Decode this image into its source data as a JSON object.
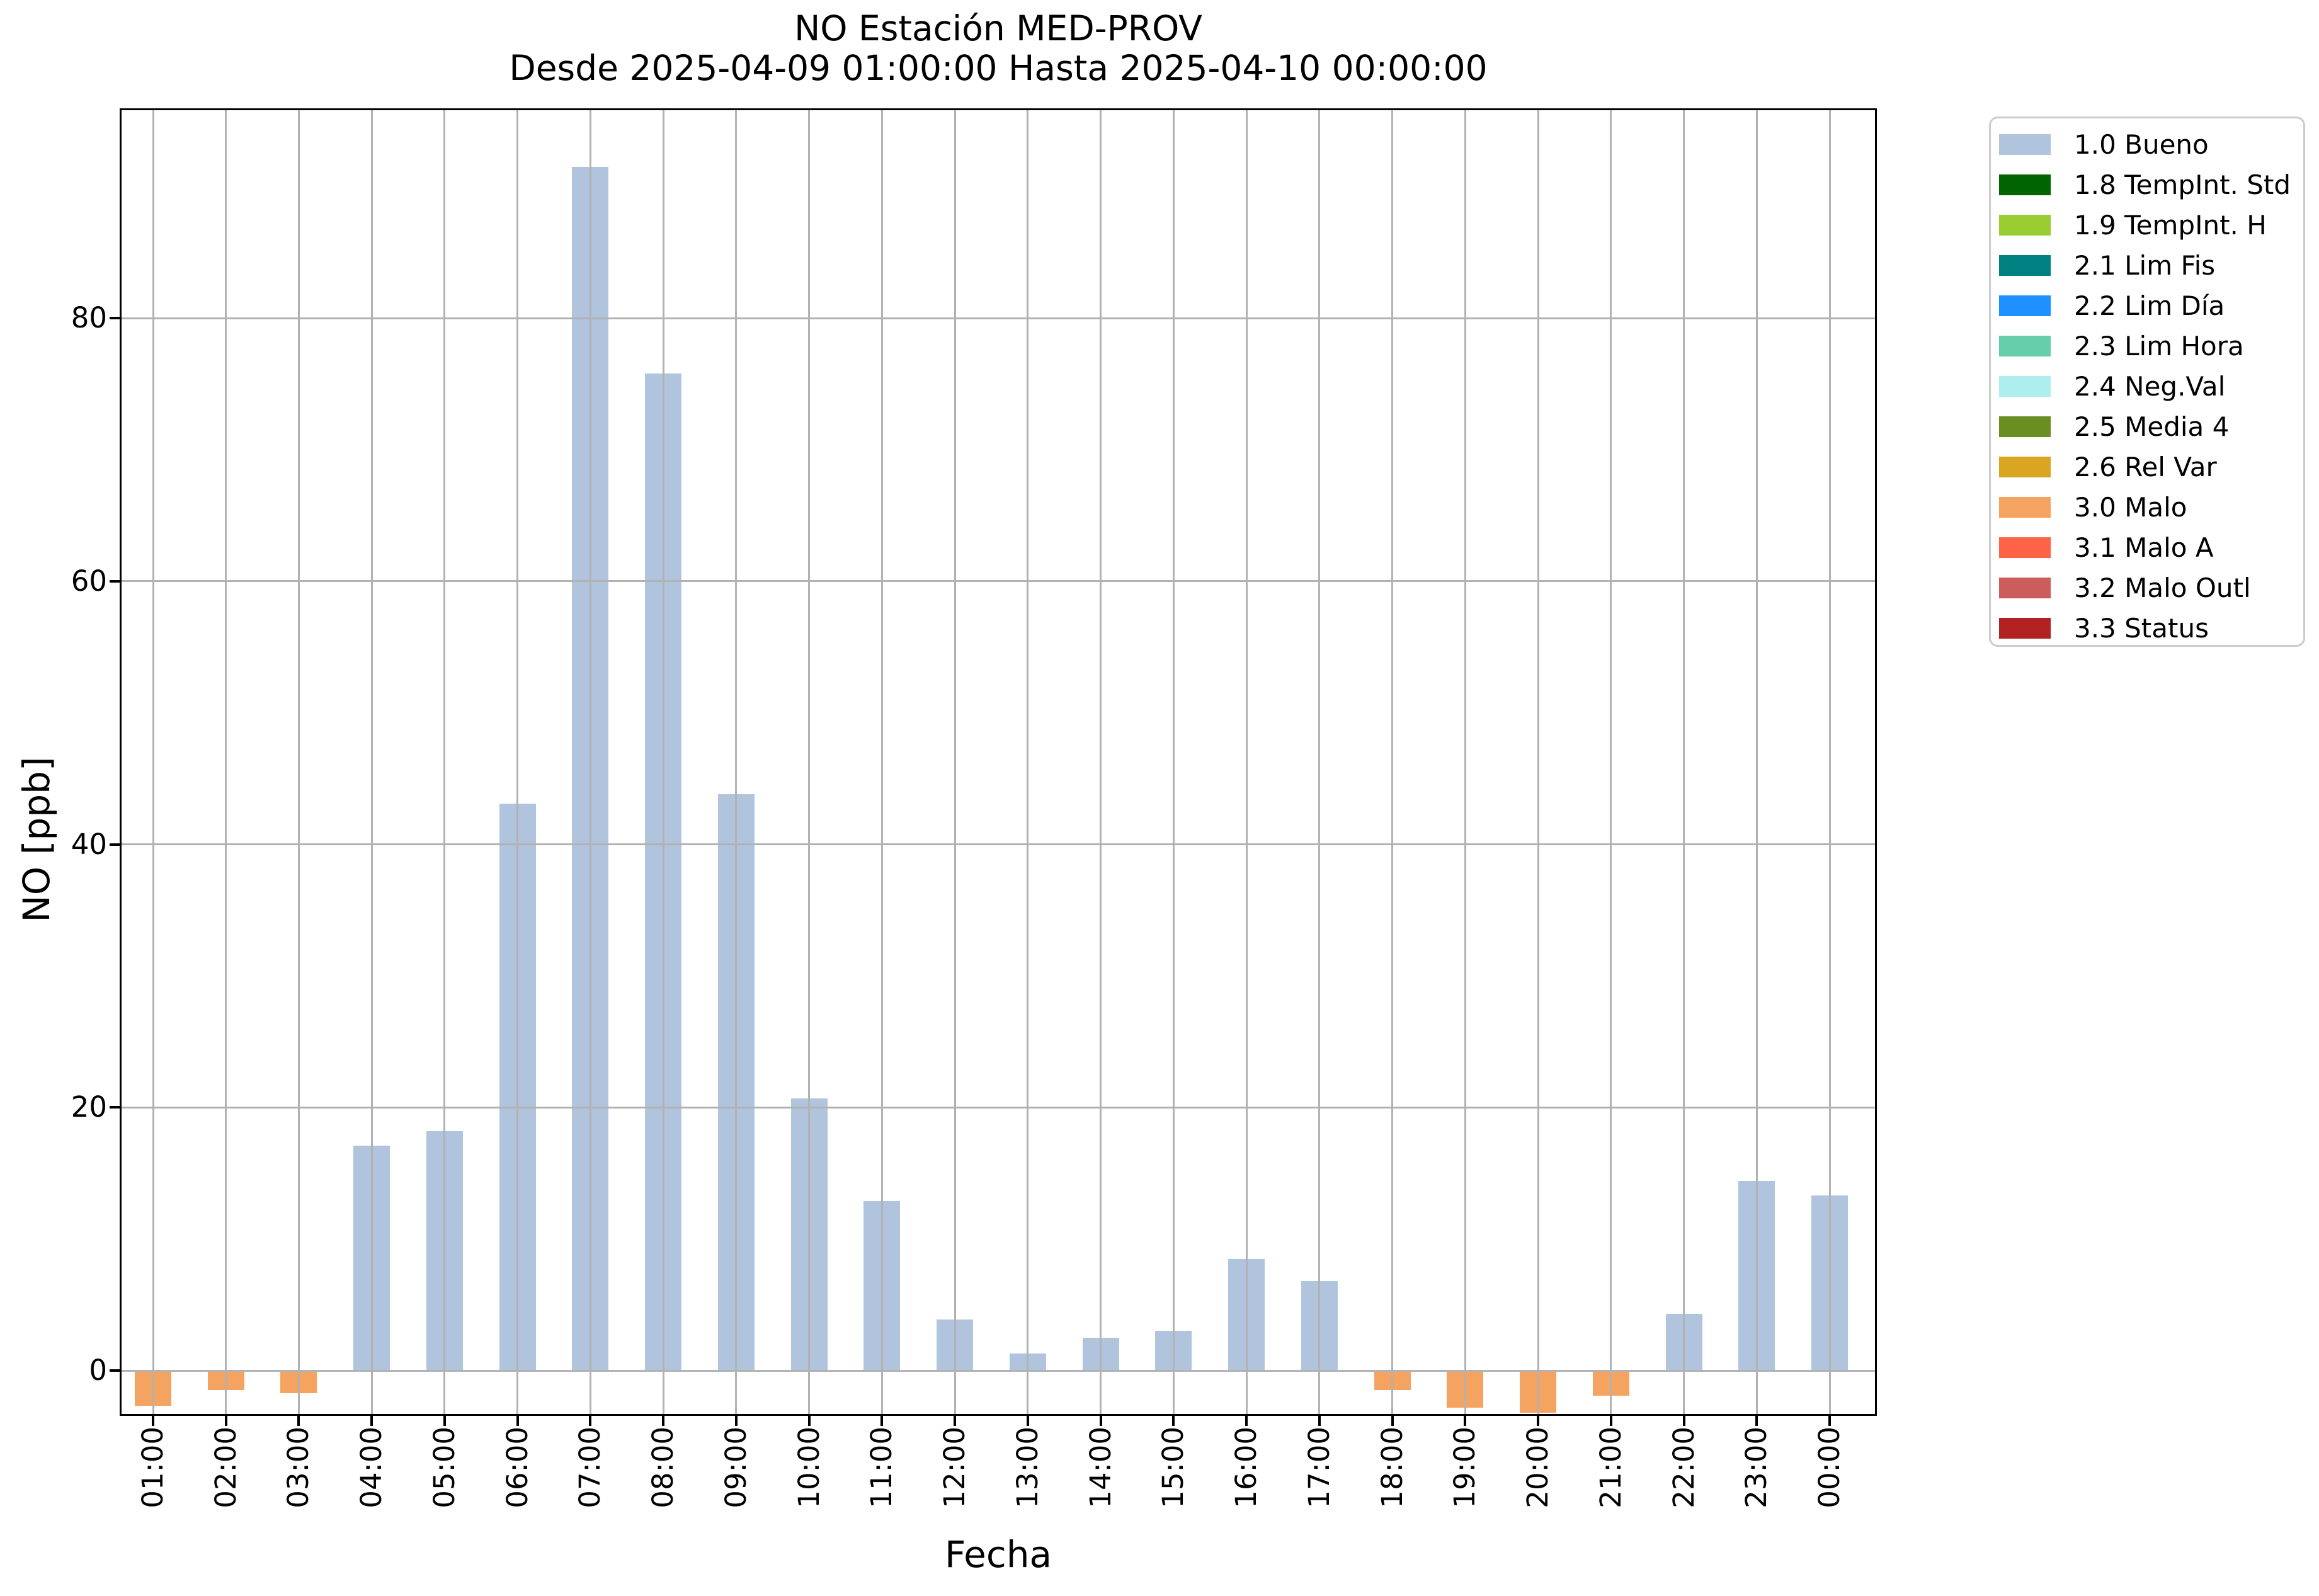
{
  "figure": {
    "title_line1": "NO Estación MED-PROV",
    "title_line2": "Desde 2025-04-09 01:00:00 Hasta 2025-04-10 00:00:00",
    "xlabel": "Fecha",
    "ylabel": "NO [ppb]"
  },
  "chart_data": {
    "type": "bar",
    "title": "NO Estación MED-PROV",
    "subtitle": "Desde 2025-04-09 01:00:00 Hasta 2025-04-10 00:00:00",
    "xlabel": "Fecha",
    "ylabel": "NO [ppb]",
    "categories": [
      "01:00",
      "02:00",
      "03:00",
      "04:00",
      "05:00",
      "06:00",
      "07:00",
      "08:00",
      "09:00",
      "10:00",
      "11:00",
      "12:00",
      "13:00",
      "14:00",
      "15:00",
      "16:00",
      "17:00",
      "18:00",
      "19:00",
      "20:00",
      "21:00",
      "22:00",
      "23:00",
      "00:00"
    ],
    "values": [
      -2.7,
      -1.5,
      -1.7,
      17.1,
      18.2,
      43.1,
      91.5,
      75.8,
      43.8,
      20.7,
      12.9,
      3.9,
      1.3,
      2.5,
      3.0,
      8.5,
      6.8,
      -1.5,
      -2.8,
      -3.2,
      -1.9,
      4.3,
      14.4,
      13.3
    ],
    "bar_colors": [
      "#f4a460",
      "#f4a460",
      "#f4a460",
      "#b0c4de",
      "#b0c4de",
      "#b0c4de",
      "#b0c4de",
      "#b0c4de",
      "#b0c4de",
      "#b0c4de",
      "#b0c4de",
      "#b0c4de",
      "#b0c4de",
      "#b0c4de",
      "#b0c4de",
      "#b0c4de",
      "#b0c4de",
      "#f4a460",
      "#f4a460",
      "#f4a460",
      "#f4a460",
      "#b0c4de",
      "#b0c4de",
      "#b0c4de"
    ],
    "positive_color": "#b0c4de",
    "negative_color": "#f4a460",
    "yticks": [
      0,
      20,
      40,
      60,
      80
    ],
    "ylim": [
      -3.3,
      95.8
    ],
    "grid": true,
    "grid_color": "#b2b2b2",
    "legend_position": "outside-upper-right"
  },
  "legend": {
    "items": [
      {
        "label": "1.0 Bueno",
        "color": "#b0c4de"
      },
      {
        "label": "1.8 TempInt. Std",
        "color": "#006400"
      },
      {
        "label": "1.9 TempInt. H",
        "color": "#9acd32"
      },
      {
        "label": "2.1 Lim Fis",
        "color": "#008080"
      },
      {
        "label": "2.2 Lim Día",
        "color": "#1e90ff"
      },
      {
        "label": "2.3 Lim Hora",
        "color": "#66cdaa"
      },
      {
        "label": "2.4 Neg.Val",
        "color": "#afeeee"
      },
      {
        "label": "2.5 Media 4",
        "color": "#6b8e23"
      },
      {
        "label": "2.6 Rel Var",
        "color": "#daa520"
      },
      {
        "label": "3.0 Malo",
        "color": "#f4a460"
      },
      {
        "label": "3.1 Malo A",
        "color": "#ff6347"
      },
      {
        "label": "3.2 Malo Outl",
        "color": "#cd5c5c"
      },
      {
        "label": "3.3 Status",
        "color": "#b22222"
      }
    ]
  }
}
